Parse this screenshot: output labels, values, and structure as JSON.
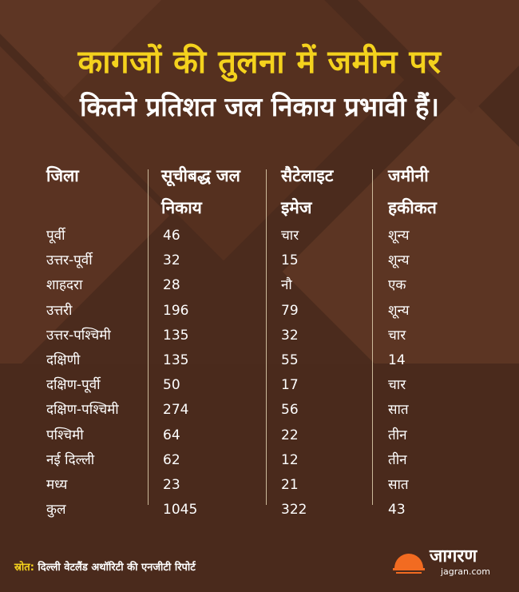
{
  "title": {
    "line1": "कागजों की तुलना में जमीन पर",
    "line2": "कितने प्रतिशत जल निकाय प्रभावी हैं।"
  },
  "table": {
    "headers": [
      {
        "line1": "जिला",
        "line2": ""
      },
      {
        "line1": "सूचीबद्ध जल",
        "line2": "निकाय"
      },
      {
        "line1": "सैटेलाइट",
        "line2": "इमेज"
      },
      {
        "line1": "जमीनी",
        "line2": "हकीकत"
      }
    ],
    "rows": [
      [
        "पूर्वी",
        "46",
        "चार",
        "शून्य"
      ],
      [
        "उत्तर-पूर्वी",
        "32",
        "15",
        "शून्य"
      ],
      [
        "शाहदरा",
        "28",
        "नौ",
        "एक"
      ],
      [
        "उत्तरी",
        "196",
        "79",
        "शून्य"
      ],
      [
        "उत्तर-पश्चिमी",
        "135",
        "32",
        "चार"
      ],
      [
        "दक्षिणी",
        "135",
        "55",
        "14"
      ],
      [
        "दक्षिण-पूर्वी",
        "50",
        "17",
        "चार"
      ],
      [
        "दक्षिण-पश्चिमी",
        "274",
        "56",
        "सात"
      ],
      [
        "पश्चिमी",
        "64",
        "22",
        "तीन"
      ],
      [
        "नई दिल्ली",
        "62",
        "12",
        "तीन"
      ],
      [
        "मध्य",
        "23",
        "21",
        "सात"
      ],
      [
        "कुल",
        "1045",
        "322",
        "43"
      ]
    ]
  },
  "footer": {
    "source_key": "स्रोत:",
    "source_text": " दिल्ली वेटलैंड अथॉरिटी की एनजीटी रिपोर्ट",
    "logo_text": "जागरण",
    "logo_url": "jagran.com"
  },
  "colors": {
    "background": "#4b2b1d",
    "title_yellow": "#f4d21d",
    "text_white": "#ffffff",
    "logo_orange": "#f26b21"
  }
}
